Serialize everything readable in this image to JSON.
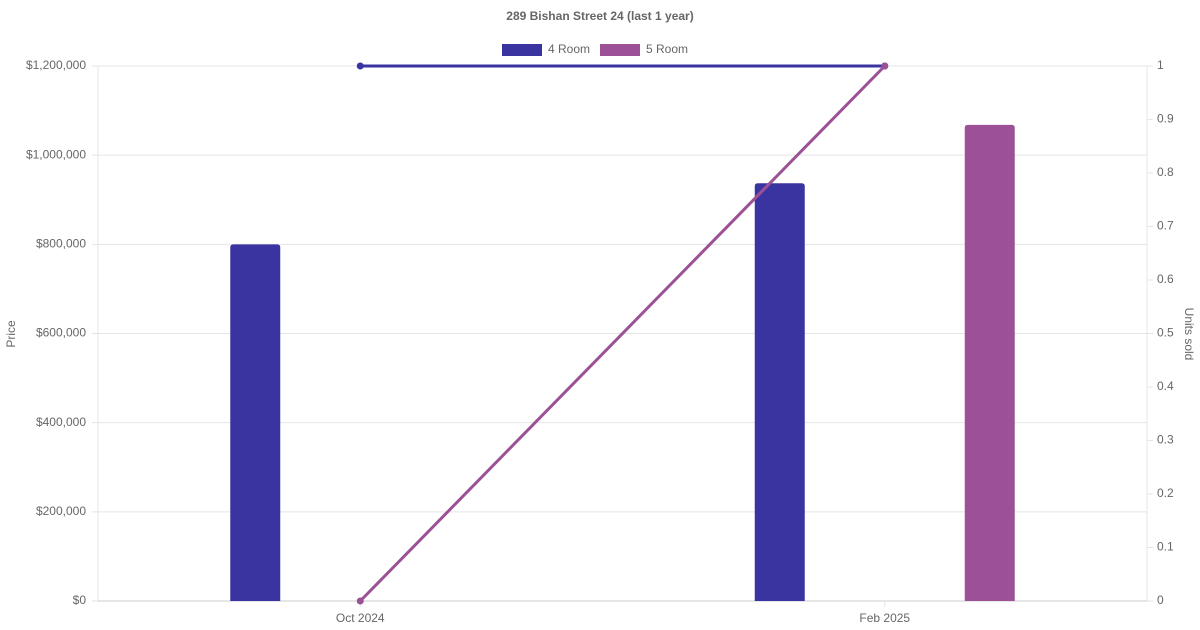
{
  "chart_data": {
    "type": "bar-line",
    "title": "289 Bishan Street 24 (last 1 year)",
    "y_label": "Price",
    "y2_label": "Units sold",
    "categories": [
      "Oct 2024",
      "Feb 2025"
    ],
    "series": [
      {
        "name": "4 Room",
        "color": "#3a34a0",
        "values": [
          800000,
          937000
        ],
        "units_sold": [
          1,
          1
        ]
      },
      {
        "name": "5 Room",
        "color": "#9c5196",
        "values": [
          null,
          1068000
        ],
        "units_sold": [
          0,
          1
        ]
      }
    ],
    "ylim": [
      0,
      1200000
    ],
    "yticks": [
      {
        "value": 0,
        "label": "$0"
      },
      {
        "value": 200000,
        "label": "$200,000"
      },
      {
        "value": 400000,
        "label": "$400,000"
      },
      {
        "value": 600000,
        "label": "$600,000"
      },
      {
        "value": 800000,
        "label": "$800,000"
      },
      {
        "value": 1000000,
        "label": "$1,000,000"
      },
      {
        "value": 1200000,
        "label": "$1,200,000"
      }
    ],
    "y2lim": [
      0,
      1
    ],
    "y2ticks": [
      0,
      0.1,
      0.2,
      0.3,
      0.4,
      0.5,
      0.6,
      0.7,
      0.8,
      0.9,
      1
    ],
    "grid": true,
    "legend": "top"
  }
}
